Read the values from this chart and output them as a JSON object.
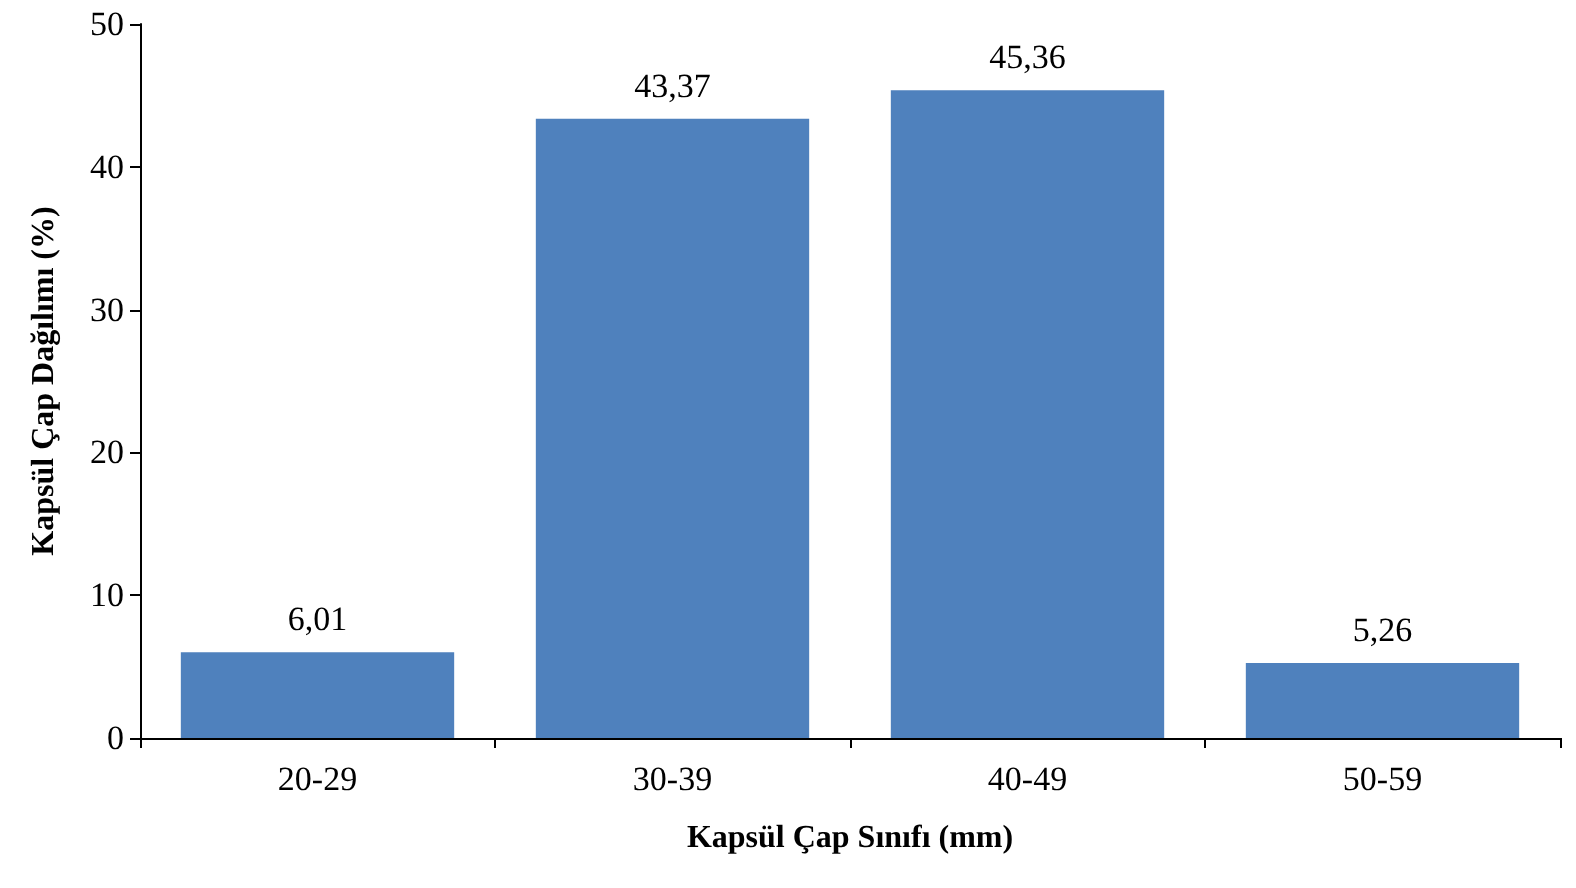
{
  "chart_data": {
    "type": "bar",
    "xlabel": "Kapsül Çap Sınıfı (mm)",
    "ylabel": "Kapsül Çap Dağılımı (%)",
    "categories": [
      "20-29",
      "30-39",
      "40-49",
      "50-59"
    ],
    "values": [
      6.01,
      43.37,
      45.36,
      5.26
    ],
    "value_labels": [
      "6,01",
      "43,37",
      "45,36",
      "5,26"
    ],
    "color": "#4f81bd",
    "ylim": [
      0,
      50
    ],
    "yticks": [
      0,
      10,
      20,
      30,
      40,
      50
    ],
    "grid": false
  }
}
